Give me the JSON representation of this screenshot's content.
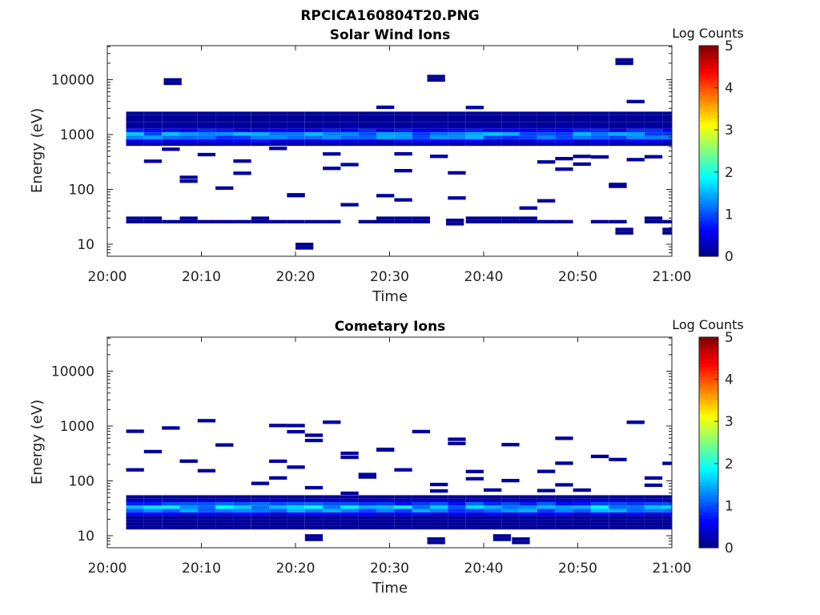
{
  "figure_title": "RPCICA160804T20.PNG",
  "chart_data": [
    {
      "type": "heatmap",
      "title": "Solar Wind Ions",
      "xlabel": "Time",
      "ylabel": "Energy (eV)",
      "x_ticks": [
        "20:00",
        "20:10",
        "20:20",
        "20:30",
        "20:40",
        "20:50",
        "21:00"
      ],
      "y_ticks": [
        "10",
        "100",
        "1000",
        "10000"
      ],
      "y_scale": "log",
      "ylim": [
        6,
        45000
      ],
      "colorbar": {
        "label": "Log Counts",
        "ticks": [
          "0",
          "1",
          "2",
          "3",
          "4",
          "5"
        ],
        "range": [
          0,
          5
        ],
        "colormap": "jet"
      },
      "main_band": {
        "energy_low": 620,
        "energy_high": 2600,
        "peak_energy": 900,
        "peak_log_counts": 1.7,
        "time_start": "20:02",
        "time_end": "21:00"
      },
      "low_band": {
        "energy_low": 24,
        "energy_high": 34,
        "log_counts": 0.1
      },
      "outliers": [
        {
          "time": "20:21",
          "energy": 8,
          "log_counts": 0.1
        },
        {
          "time": "20:37",
          "energy": 22,
          "log_counts": 0.1
        },
        {
          "time": "20:55",
          "energy": 15,
          "log_counts": 0.1
        },
        {
          "time": "21:00",
          "energy": 15,
          "log_counts": 0.1
        },
        {
          "time": "20:55",
          "energy": 18500,
          "log_counts": 0.1
        },
        {
          "time": "20:35",
          "energy": 9200,
          "log_counts": 0.1
        },
        {
          "time": "20:07",
          "energy": 8000,
          "log_counts": 0.1
        }
      ]
    },
    {
      "type": "heatmap",
      "title": "Cometary Ions",
      "xlabel": "Time",
      "ylabel": "Energy (eV)",
      "x_ticks": [
        "20:00",
        "20:10",
        "20:20",
        "20:30",
        "20:40",
        "20:50",
        "21:00"
      ],
      "y_ticks": [
        "10",
        "100",
        "1000",
        "10000"
      ],
      "y_scale": "log",
      "ylim": [
        6,
        45000
      ],
      "colorbar": {
        "label": "Log Counts",
        "ticks": [
          "0",
          "1",
          "2",
          "3",
          "4",
          "5"
        ],
        "range": [
          0,
          5
        ],
        "colormap": "jet"
      },
      "main_band": {
        "energy_low": 13,
        "energy_high": 50,
        "peak_energy": 30,
        "peak_log_counts": 1.9,
        "time_start": "20:02",
        "time_end": "21:00"
      },
      "outliers": [
        {
          "time": "20:22",
          "energy": 8,
          "log_counts": 0.1
        },
        {
          "time": "20:35",
          "energy": 7,
          "log_counts": 0.1
        },
        {
          "time": "20:42",
          "energy": 8,
          "log_counts": 0.1
        },
        {
          "time": "20:44",
          "energy": 7,
          "log_counts": 0.1
        }
      ]
    }
  ]
}
